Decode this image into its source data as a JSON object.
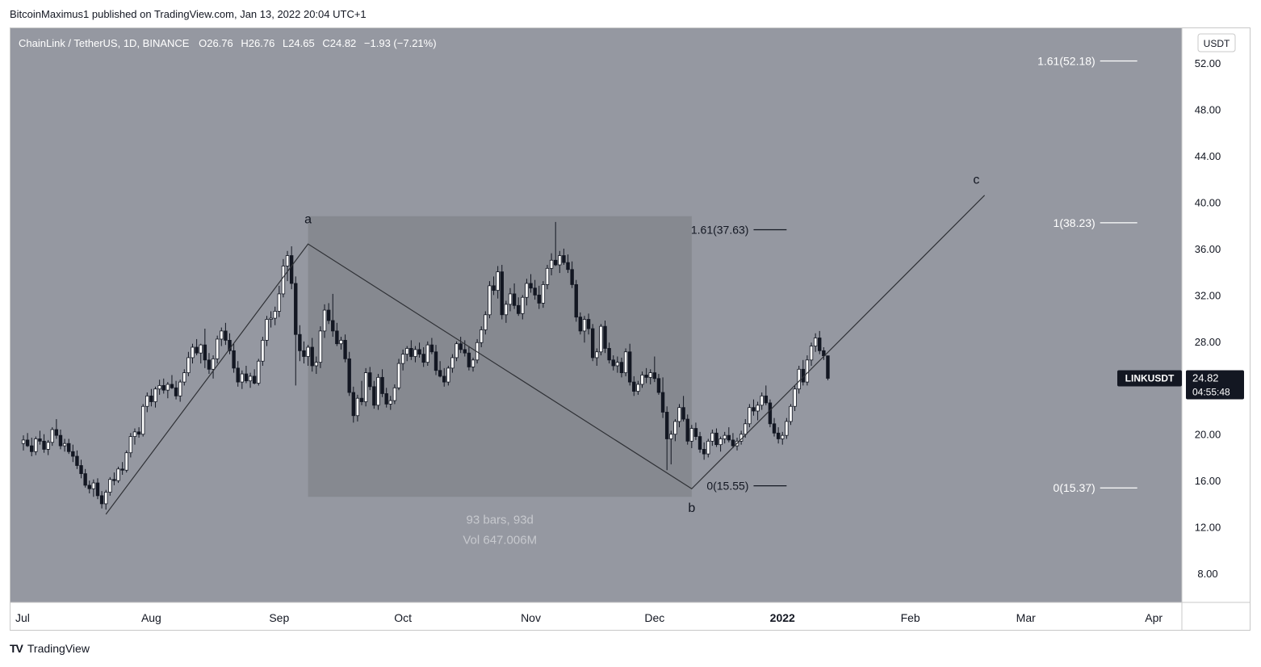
{
  "header": {
    "publisher_line": "BitcoinMaximus1 published on TradingView.com, Jan 13, 2022 20:04 UTC+1"
  },
  "footer": {
    "brand": "TradingView",
    "logo_mark": "TV"
  },
  "colors": {
    "chart_bg": "#9598a1",
    "range_box": "#868990",
    "candle_up": "#ffffff",
    "candle_down": "#131722",
    "axis_bg": "#ffffff",
    "price_tag_bg": "#131722",
    "line": "#2f3136"
  },
  "chart_data": {
    "type": "candlestick",
    "title": "ChainLink / TetherUS, 1D, BINANCE",
    "ohlc_label": {
      "o_key": "O",
      "o": "26.76",
      "h_key": "H",
      "h": "26.76",
      "l_key": "L",
      "l": "24.65",
      "c_key": "C",
      "c": "24.82",
      "change": "−1.93 (−7.21%)"
    },
    "currency": "USDT",
    "ylim": [
      5.5,
      55.0
    ],
    "yticks": [
      "52.00",
      "48.00",
      "44.00",
      "40.00",
      "36.00",
      "32.00",
      "28.00",
      "24.00",
      "20.00",
      "16.00",
      "12.00",
      "8.00"
    ],
    "ytick_values": [
      52,
      48,
      44,
      40,
      36,
      32,
      28,
      24,
      20,
      16,
      12,
      8
    ],
    "xticks": [
      "Jul",
      "Aug",
      "Sep",
      "Oct",
      "Nov",
      "Dec",
      "2022",
      "Feb",
      "Mar",
      "Apr"
    ],
    "xtick_days": [
      0,
      31,
      62,
      92,
      123,
      153,
      184,
      215,
      243,
      274
    ],
    "x_unit": "days since Jul 1, 2021",
    "symbol_tag": "LINKUSDT",
    "last_price": "24.82",
    "countdown": "04:55:48",
    "range_box": {
      "start_day": 69,
      "end_day": 162,
      "low": 14.6,
      "high": 38.8
    },
    "range_stats": {
      "bars": "93 bars, 93d",
      "volume": "Vol 647.006M"
    },
    "wave_labels": [
      {
        "label": "a",
        "day": 69,
        "price": 38.2
      },
      {
        "label": "b",
        "day": 162,
        "price": 13.3
      },
      {
        "label": "c",
        "day": 231,
        "price": 41.6
      }
    ],
    "wave_path": [
      {
        "day": 20,
        "price": 13.1
      },
      {
        "day": 69,
        "price": 36.4
      },
      {
        "day": 162,
        "price": 15.3
      },
      {
        "day": 233,
        "price": 40.6
      }
    ],
    "fib_levels": [
      {
        "label": "1.61(37.63)",
        "price": 37.63,
        "start_day": 177,
        "end_day": 185
      },
      {
        "label": "0(15.55)",
        "price": 15.55,
        "start_day": 177,
        "end_day": 185
      },
      {
        "label": "1.61(52.18)",
        "price": 52.18,
        "start_day": 261,
        "end_day": 270
      },
      {
        "label": "1(38.23)",
        "price": 38.23,
        "start_day": 261,
        "end_day": 270
      },
      {
        "label": "0(15.37)",
        "price": 15.37,
        "start_day": 261,
        "end_day": 270
      }
    ],
    "candles": [
      [
        19.2,
        19.9,
        18.6,
        19.5
      ],
      [
        19.5,
        20.1,
        18.9,
        19.0
      ],
      [
        19.0,
        19.7,
        18.1,
        18.5
      ],
      [
        18.5,
        19.8,
        18.2,
        19.6
      ],
      [
        19.6,
        20.3,
        19.1,
        19.4
      ],
      [
        19.4,
        20.0,
        18.4,
        18.7
      ],
      [
        18.7,
        19.5,
        18.2,
        19.3
      ],
      [
        19.3,
        20.6,
        19.0,
        20.4
      ],
      [
        20.4,
        21.3,
        19.6,
        19.9
      ],
      [
        19.9,
        20.4,
        18.7,
        19.0
      ],
      [
        19.0,
        19.6,
        18.5,
        19.2
      ],
      [
        19.2,
        19.6,
        18.3,
        18.5
      ],
      [
        18.5,
        19.1,
        17.6,
        18.1
      ],
      [
        18.1,
        18.6,
        17.0,
        17.3
      ],
      [
        17.3,
        17.8,
        16.2,
        16.6
      ],
      [
        16.6,
        17.0,
        15.4,
        15.6
      ],
      [
        15.6,
        16.0,
        14.9,
        15.3
      ],
      [
        15.3,
        16.1,
        14.6,
        15.8
      ],
      [
        15.8,
        16.2,
        14.4,
        14.7
      ],
      [
        14.7,
        15.1,
        13.6,
        14.0
      ],
      [
        14.0,
        15.2,
        13.5,
        15.0
      ],
      [
        15.0,
        16.3,
        14.7,
        16.1
      ],
      [
        16.1,
        16.7,
        15.6,
        16.0
      ],
      [
        16.0,
        17.2,
        15.8,
        17.0
      ],
      [
        17.0,
        17.6,
        16.5,
        16.9
      ],
      [
        16.9,
        18.6,
        16.7,
        18.4
      ],
      [
        18.4,
        20.1,
        18.0,
        19.8
      ],
      [
        19.8,
        20.5,
        19.1,
        20.2
      ],
      [
        20.2,
        20.6,
        19.7,
        20.0
      ],
      [
        20.0,
        22.6,
        19.8,
        22.4
      ],
      [
        22.4,
        23.6,
        21.9,
        23.3
      ],
      [
        23.3,
        23.9,
        22.4,
        22.8
      ],
      [
        22.8,
        24.1,
        22.3,
        23.9
      ],
      [
        23.9,
        24.7,
        23.4,
        24.2
      ],
      [
        24.2,
        24.8,
        23.5,
        23.8
      ],
      [
        23.8,
        24.5,
        23.1,
        24.3
      ],
      [
        24.3,
        25.1,
        23.9,
        24.0
      ],
      [
        24.0,
        24.6,
        23.0,
        23.3
      ],
      [
        23.3,
        24.7,
        22.8,
        24.5
      ],
      [
        24.5,
        25.6,
        24.2,
        25.3
      ],
      [
        25.3,
        27.1,
        25.0,
        26.6
      ],
      [
        26.6,
        27.8,
        26.1,
        27.5
      ],
      [
        27.5,
        28.2,
        26.8,
        27.0
      ],
      [
        27.0,
        27.8,
        26.1,
        27.7
      ],
      [
        27.7,
        29.1,
        25.7,
        26.4
      ],
      [
        26.4,
        27.0,
        25.2,
        25.6
      ],
      [
        25.6,
        26.8,
        24.8,
        26.5
      ],
      [
        26.5,
        28.5,
        26.1,
        28.2
      ],
      [
        28.2,
        29.2,
        27.6,
        28.9
      ],
      [
        28.9,
        29.6,
        27.7,
        28.1
      ],
      [
        28.1,
        28.7,
        26.9,
        27.2
      ],
      [
        27.2,
        27.8,
        25.3,
        25.7
      ],
      [
        25.7,
        26.3,
        24.1,
        24.5
      ],
      [
        24.5,
        25.5,
        23.9,
        25.2
      ],
      [
        25.2,
        25.9,
        24.4,
        24.6
      ],
      [
        24.6,
        25.3,
        24.0,
        25.0
      ],
      [
        25.0,
        25.6,
        24.3,
        24.4
      ],
      [
        24.4,
        26.5,
        24.2,
        26.3
      ],
      [
        26.3,
        28.4,
        25.9,
        28.1
      ],
      [
        28.1,
        30.2,
        27.6,
        29.9
      ],
      [
        29.9,
        30.6,
        29.2,
        30.0
      ],
      [
        30.0,
        31.0,
        29.4,
        30.6
      ],
      [
        30.6,
        32.8,
        30.1,
        32.1
      ],
      [
        32.1,
        35.1,
        31.8,
        34.5
      ],
      [
        34.5,
        35.8,
        33.2,
        35.4
      ],
      [
        35.4,
        36.2,
        32.5,
        33.0
      ],
      [
        33.0,
        33.6,
        24.2,
        28.6
      ],
      [
        28.6,
        29.4,
        26.3,
        27.2
      ],
      [
        27.2,
        28.0,
        26.1,
        26.7
      ],
      [
        26.7,
        27.7,
        25.9,
        27.5
      ],
      [
        27.5,
        28.3,
        25.4,
        25.9
      ],
      [
        25.9,
        26.7,
        25.2,
        26.2
      ],
      [
        26.2,
        29.3,
        25.7,
        28.9
      ],
      [
        28.9,
        31.2,
        28.3,
        30.7
      ],
      [
        30.7,
        31.3,
        29.5,
        29.8
      ],
      [
        29.8,
        32.1,
        28.4,
        28.9
      ],
      [
        28.9,
        29.6,
        27.6,
        27.8
      ],
      [
        27.8,
        28.4,
        27.3,
        28.1
      ],
      [
        28.1,
        28.6,
        26.2,
        26.5
      ],
      [
        26.5,
        27.1,
        23.3,
        23.6
      ],
      [
        23.6,
        24.1,
        21.0,
        21.6
      ],
      [
        21.6,
        23.4,
        21.1,
        23.1
      ],
      [
        23.1,
        24.6,
        22.5,
        22.8
      ],
      [
        22.8,
        25.7,
        22.4,
        25.3
      ],
      [
        25.3,
        25.8,
        23.8,
        24.1
      ],
      [
        24.1,
        24.6,
        22.2,
        22.5
      ],
      [
        22.5,
        25.2,
        22.1,
        24.9
      ],
      [
        24.9,
        25.6,
        23.2,
        23.5
      ],
      [
        23.5,
        24.0,
        22.3,
        22.6
      ],
      [
        22.6,
        23.3,
        22.1,
        22.9
      ],
      [
        22.9,
        24.3,
        22.6,
        24.0
      ],
      [
        24.0,
        26.5,
        23.8,
        26.1
      ],
      [
        26.1,
        27.3,
        25.5,
        26.9
      ],
      [
        26.9,
        27.6,
        26.3,
        27.4
      ],
      [
        27.4,
        28.1,
        26.4,
        26.7
      ],
      [
        26.7,
        27.6,
        26.2,
        27.3
      ],
      [
        27.3,
        27.9,
        26.6,
        26.9
      ],
      [
        26.9,
        27.5,
        25.8,
        26.2
      ],
      [
        26.2,
        28.0,
        25.9,
        27.7
      ],
      [
        27.7,
        28.3,
        26.9,
        27.1
      ],
      [
        27.1,
        27.7,
        25.1,
        25.5
      ],
      [
        25.5,
        26.3,
        24.9,
        25.0
      ],
      [
        25.0,
        25.7,
        24.1,
        24.5
      ],
      [
        24.5,
        25.9,
        24.2,
        25.7
      ],
      [
        25.7,
        26.9,
        25.3,
        26.6
      ],
      [
        26.6,
        28.0,
        26.3,
        27.8
      ],
      [
        27.8,
        28.4,
        27.0,
        27.3
      ],
      [
        27.3,
        28.1,
        26.7,
        27.0
      ],
      [
        27.0,
        27.6,
        25.5,
        25.8
      ],
      [
        25.8,
        26.6,
        25.4,
        26.4
      ],
      [
        26.4,
        28.2,
        26.1,
        27.9
      ],
      [
        27.9,
        29.3,
        27.5,
        29.0
      ],
      [
        29.0,
        30.6,
        28.6,
        30.3
      ],
      [
        30.3,
        33.2,
        30.0,
        32.8
      ],
      [
        32.8,
        33.6,
        32.0,
        32.4
      ],
      [
        32.4,
        34.5,
        31.7,
        34.0
      ],
      [
        34.0,
        34.6,
        29.9,
        30.3
      ],
      [
        30.3,
        31.5,
        29.6,
        31.2
      ],
      [
        31.2,
        32.6,
        30.6,
        32.1
      ],
      [
        32.1,
        33.0,
        30.8,
        31.1
      ],
      [
        31.1,
        31.8,
        30.2,
        30.4
      ],
      [
        30.4,
        32.0,
        29.9,
        31.8
      ],
      [
        31.8,
        33.4,
        31.1,
        33.0
      ],
      [
        33.0,
        33.8,
        32.2,
        32.6
      ],
      [
        32.6,
        33.3,
        31.6,
        32.0
      ],
      [
        32.0,
        32.8,
        30.8,
        31.3
      ],
      [
        31.3,
        33.2,
        30.9,
        32.9
      ],
      [
        32.9,
        34.6,
        32.5,
        34.3
      ],
      [
        34.3,
        35.6,
        33.7,
        35.0
      ],
      [
        35.0,
        38.3,
        34.5,
        34.6
      ],
      [
        34.6,
        35.8,
        33.9,
        35.4
      ],
      [
        35.4,
        36.0,
        34.6,
        34.8
      ],
      [
        34.8,
        35.5,
        33.9,
        34.2
      ],
      [
        34.2,
        34.9,
        32.6,
        32.9
      ],
      [
        32.9,
        33.3,
        29.7,
        30.1
      ],
      [
        30.1,
        30.5,
        28.6,
        28.9
      ],
      [
        28.9,
        30.2,
        27.9,
        29.9
      ],
      [
        29.9,
        30.4,
        28.6,
        29.1
      ],
      [
        29.1,
        29.5,
        26.3,
        26.6
      ],
      [
        26.6,
        27.4,
        25.9,
        27.1
      ],
      [
        27.1,
        29.5,
        26.8,
        29.3
      ],
      [
        29.3,
        29.8,
        27.0,
        27.4
      ],
      [
        27.4,
        27.9,
        26.1,
        26.4
      ],
      [
        26.4,
        26.8,
        25.5,
        25.9
      ],
      [
        25.9,
        26.7,
        25.3,
        26.2
      ],
      [
        26.2,
        26.6,
        24.9,
        25.3
      ],
      [
        25.3,
        27.4,
        25.0,
        27.1
      ],
      [
        27.1,
        27.8,
        24.2,
        24.5
      ],
      [
        24.5,
        25.0,
        23.3,
        23.7
      ],
      [
        23.7,
        24.6,
        23.4,
        24.3
      ],
      [
        24.3,
        25.4,
        24.0,
        25.1
      ],
      [
        25.1,
        25.7,
        24.4,
        24.9
      ],
      [
        24.9,
        25.6,
        24.3,
        25.3
      ],
      [
        25.3,
        26.7,
        24.5,
        24.8
      ],
      [
        24.8,
        25.2,
        23.4,
        23.6
      ],
      [
        23.6,
        24.9,
        21.4,
        21.9
      ],
      [
        21.9,
        22.4,
        16.9,
        19.6
      ],
      [
        19.6,
        20.3,
        17.4,
        20.0
      ],
      [
        20.0,
        21.3,
        19.4,
        21.1
      ],
      [
        21.1,
        22.6,
        20.6,
        22.3
      ],
      [
        22.3,
        23.3,
        21.1,
        21.3
      ],
      [
        21.3,
        21.7,
        19.1,
        19.4
      ],
      [
        19.4,
        20.8,
        18.8,
        20.5
      ],
      [
        20.5,
        21.0,
        19.5,
        19.8
      ],
      [
        19.8,
        20.2,
        18.4,
        18.7
      ],
      [
        18.7,
        19.3,
        17.8,
        18.3
      ],
      [
        18.3,
        19.6,
        18.0,
        19.4
      ],
      [
        19.4,
        20.4,
        19.0,
        20.1
      ],
      [
        20.1,
        20.5,
        18.9,
        19.1
      ],
      [
        19.1,
        19.8,
        18.5,
        19.6
      ],
      [
        19.6,
        20.2,
        19.2,
        19.9
      ],
      [
        19.9,
        20.6,
        19.3,
        19.5
      ],
      [
        19.5,
        20.1,
        18.8,
        19.0
      ],
      [
        19.0,
        19.7,
        18.6,
        19.4
      ],
      [
        19.4,
        20.3,
        19.1,
        20.0
      ],
      [
        20.0,
        21.3,
        19.7,
        20.9
      ],
      [
        20.9,
        22.6,
        20.6,
        22.3
      ],
      [
        22.3,
        23.0,
        21.6,
        22.0
      ],
      [
        22.0,
        22.8,
        21.2,
        22.5
      ],
      [
        22.5,
        23.6,
        22.1,
        23.3
      ],
      [
        23.3,
        24.2,
        22.5,
        22.7
      ],
      [
        22.7,
        23.0,
        20.6,
        20.9
      ],
      [
        20.9,
        21.4,
        19.8,
        20.1
      ],
      [
        20.1,
        20.6,
        19.2,
        19.6
      ],
      [
        19.6,
        20.2,
        19.1,
        19.9
      ],
      [
        19.9,
        21.4,
        19.6,
        21.1
      ],
      [
        21.1,
        22.6,
        20.8,
        22.4
      ],
      [
        22.4,
        24.2,
        22.0,
        23.9
      ],
      [
        23.9,
        25.9,
        23.5,
        25.6
      ],
      [
        25.6,
        26.4,
        24.2,
        24.5
      ],
      [
        24.5,
        26.8,
        24.2,
        26.4
      ],
      [
        26.4,
        27.9,
        25.9,
        27.6
      ],
      [
        27.6,
        28.7,
        27.1,
        28.3
      ],
      [
        28.3,
        28.9,
        26.9,
        27.2
      ],
      [
        27.2,
        27.5,
        26.4,
        26.76
      ],
      [
        26.76,
        26.76,
        24.65,
        24.82
      ]
    ]
  }
}
